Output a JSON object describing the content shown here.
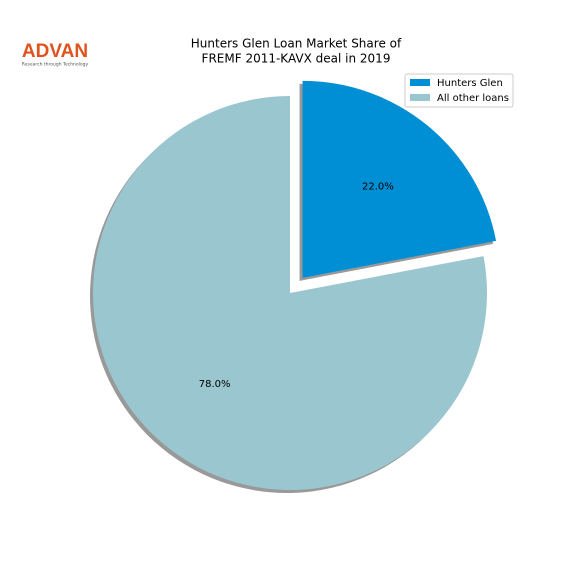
{
  "logo": {
    "name": "ADVAN",
    "tagline": "Research through Technology"
  },
  "chart_data": {
    "type": "pie",
    "title": [
      "Hunters Glen Loan Market Share of",
      "FREMF 2011-KAVX deal in 2019"
    ],
    "categories": [
      "Hunters Glen",
      "All other loans"
    ],
    "values": [
      22,
      78
    ],
    "value_labels": [
      "22.0%",
      "78.0%"
    ],
    "colors": [
      "#008fd5",
      "#9ac6d0"
    ],
    "explode": [
      0.1,
      0
    ],
    "shadow": true,
    "legend": "upper right"
  }
}
